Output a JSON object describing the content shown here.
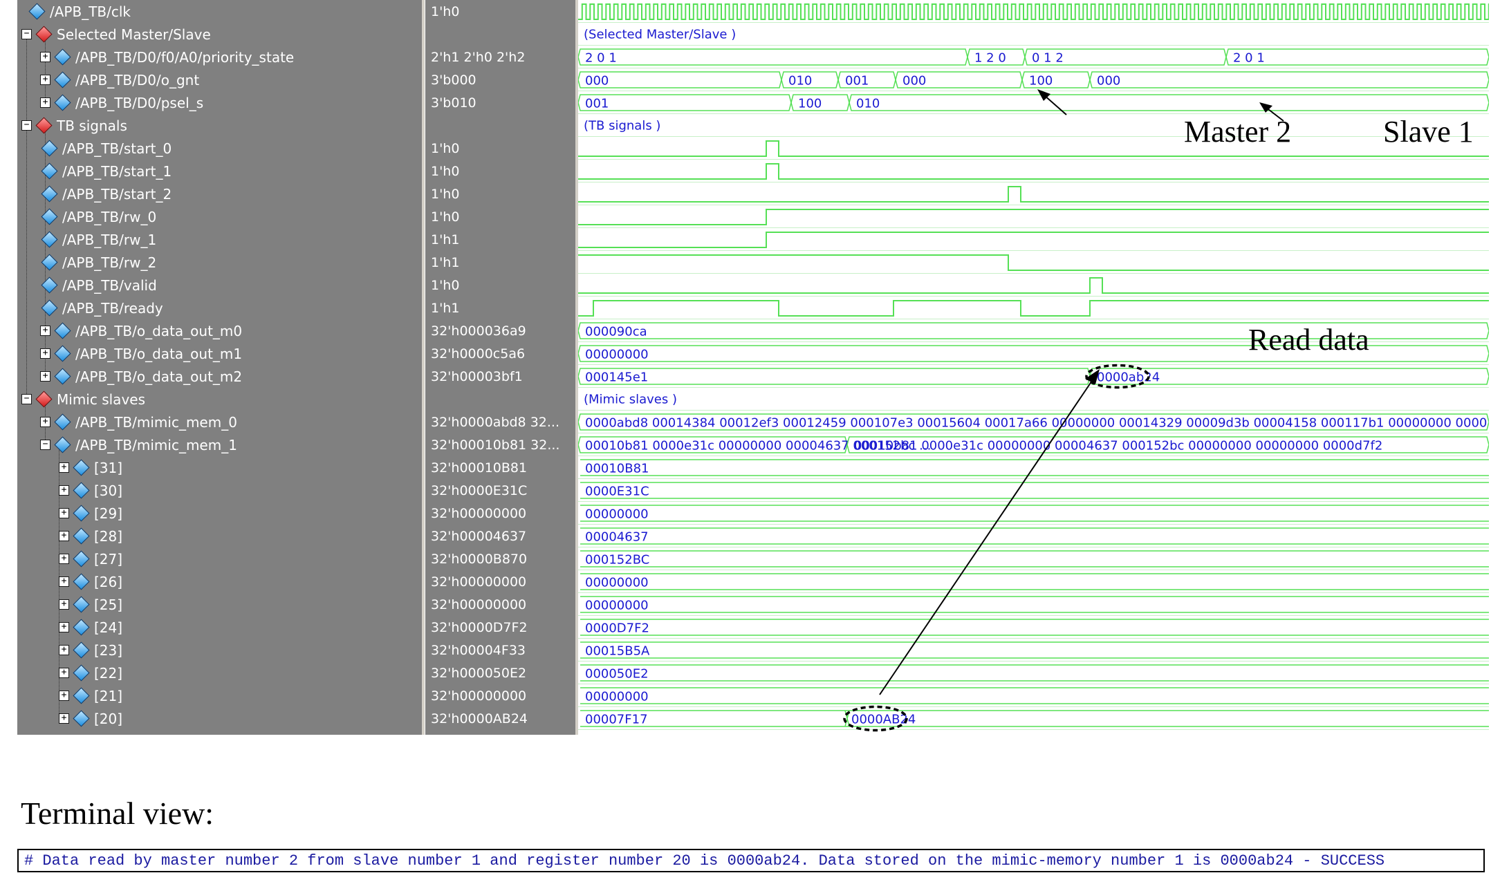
{
  "colors": {
    "panel_bg": "#808080",
    "wave": "#55e055",
    "bus_text": "#1a1ad0",
    "terminal_text": "#1a1aa0"
  },
  "signals": [
    {
      "name": "/APB_TB/clk",
      "value": "1'h0",
      "icon": "blue-diamond",
      "expander": ""
    },
    {
      "name": "Selected Master/Slave",
      "value": "",
      "icon": "red-diamond",
      "expander": "−",
      "group": true
    },
    {
      "name": "/APB_TB/D0/f0/A0/priority_state",
      "value": "2'h1 2'h0 2'h2",
      "icon": "blue-diamond",
      "expander": "+"
    },
    {
      "name": "/APB_TB/D0/o_gnt",
      "value": "3'b000",
      "icon": "blue-diamond",
      "expander": "+"
    },
    {
      "name": "/APB_TB/D0/psel_s",
      "value": "3'b010",
      "icon": "blue-diamond",
      "expander": "+"
    },
    {
      "name": "TB signals",
      "value": "",
      "icon": "red-diamond",
      "expander": "−",
      "group": true
    },
    {
      "name": "/APB_TB/start_0",
      "value": "1'h0",
      "icon": "blue-diamond",
      "expander": ""
    },
    {
      "name": "/APB_TB/start_1",
      "value": "1'h0",
      "icon": "blue-diamond",
      "expander": ""
    },
    {
      "name": "/APB_TB/start_2",
      "value": "1'h0",
      "icon": "blue-diamond",
      "expander": ""
    },
    {
      "name": "/APB_TB/rw_0",
      "value": "1'h0",
      "icon": "blue-diamond",
      "expander": ""
    },
    {
      "name": "/APB_TB/rw_1",
      "value": "1'h1",
      "icon": "blue-diamond",
      "expander": ""
    },
    {
      "name": "/APB_TB/rw_2",
      "value": "1'h1",
      "icon": "blue-diamond",
      "expander": ""
    },
    {
      "name": "/APB_TB/valid",
      "value": "1'h0",
      "icon": "blue-diamond",
      "expander": ""
    },
    {
      "name": "/APB_TB/ready",
      "value": "1'h1",
      "icon": "blue-diamond",
      "expander": ""
    },
    {
      "name": "/APB_TB/o_data_out_m0",
      "value": "32'h000036a9",
      "icon": "blue-diamond",
      "expander": "+"
    },
    {
      "name": "/APB_TB/o_data_out_m1",
      "value": "32'h0000c5a6",
      "icon": "blue-diamond",
      "expander": "+"
    },
    {
      "name": "/APB_TB/o_data_out_m2",
      "value": "32'h00003bf1",
      "icon": "blue-diamond",
      "expander": "+"
    },
    {
      "name": "Mimic slaves",
      "value": "",
      "icon": "red-diamond",
      "expander": "−",
      "group": true
    },
    {
      "name": "/APB_TB/mimic_mem_0",
      "value": "32'h0000abd8 32...",
      "icon": "blue-diamond",
      "expander": "+"
    },
    {
      "name": "/APB_TB/mimic_mem_1",
      "value": "32'h00010b81 32...",
      "icon": "blue-diamond",
      "expander": "−"
    },
    {
      "name": "[31]",
      "value": "32'h00010B81",
      "icon": "blue-diamond",
      "expander": "+",
      "child": true
    },
    {
      "name": "[30]",
      "value": "32'h0000E31C",
      "icon": "blue-diamond",
      "expander": "+",
      "child": true
    },
    {
      "name": "[29]",
      "value": "32'h00000000",
      "icon": "blue-diamond",
      "expander": "+",
      "child": true
    },
    {
      "name": "[28]",
      "value": "32'h00004637",
      "icon": "blue-diamond",
      "expander": "+",
      "child": true
    },
    {
      "name": "[27]",
      "value": "32'h0000B870",
      "icon": "blue-diamond",
      "expander": "+",
      "child": true
    },
    {
      "name": "[26]",
      "value": "32'h00000000",
      "icon": "blue-diamond",
      "expander": "+",
      "child": true
    },
    {
      "name": "[25]",
      "value": "32'h00000000",
      "icon": "blue-diamond",
      "expander": "+",
      "child": true
    },
    {
      "name": "[24]",
      "value": "32'h0000D7F2",
      "icon": "blue-diamond",
      "expander": "+",
      "child": true
    },
    {
      "name": "[23]",
      "value": "32'h00004F33",
      "icon": "blue-diamond",
      "expander": "+",
      "child": true
    },
    {
      "name": "[22]",
      "value": "32'h000050E2",
      "icon": "blue-diamond",
      "expander": "+",
      "child": true
    },
    {
      "name": "[21]",
      "value": "32'h00000000",
      "icon": "blue-diamond",
      "expander": "+",
      "child": true
    },
    {
      "name": "[20]",
      "value": "32'h0000AB24",
      "icon": "blue-diamond",
      "expander": "+",
      "child": true
    }
  ],
  "waves": {
    "group_labels": [
      "(Selected Master/Slave )",
      "(TB signals )",
      "(Mimic slaves )"
    ],
    "priority_state": [
      "2 0 1",
      "1 2 0",
      "0 1 2",
      "2 0 1"
    ],
    "o_gnt": [
      "000",
      "010",
      "001",
      "000",
      "100",
      "000"
    ],
    "psel_s": [
      "001",
      "100",
      "010"
    ],
    "o_data_out_m0": [
      "000090ca"
    ],
    "o_data_out_m1": [
      "00000000"
    ],
    "o_data_out_m2": [
      "000145e1",
      "0000ab24"
    ],
    "mimic_mem_0": [
      "0000abd8 00014384 00012ef3 00012459 000107e3 00015604 00017a66 00000000 00014329 00009d3b 00004158 000117b1 00000000 0000"
    ],
    "mimic_mem_1": [
      "00010b81 0000e31c 00000000 00004637 000152bc ...",
      "00010b81 0000e31c 00000000 00004637 000152bc 00000000 00000000 0000d7f2"
    ],
    "mem_rows": [
      "00010B81",
      "0000E31C",
      "00000000",
      "00004637",
      "000152BC",
      "00000000",
      "00000000",
      "0000D7F2",
      "00015B5A",
      "000050E2",
      "00000000",
      "00007F17"
    ],
    "mem20_new": "0000AB24"
  },
  "annotations": {
    "master": "Master 2",
    "slave": "Slave 1",
    "read_data": "Read data"
  },
  "terminal": {
    "title": "Terminal view:",
    "text": "# Data read by master number 2 from slave number 1 and register number 20 is 0000ab24. Data stored on the mimic-memory number 1 is 0000ab24 - SUCCESS"
  }
}
